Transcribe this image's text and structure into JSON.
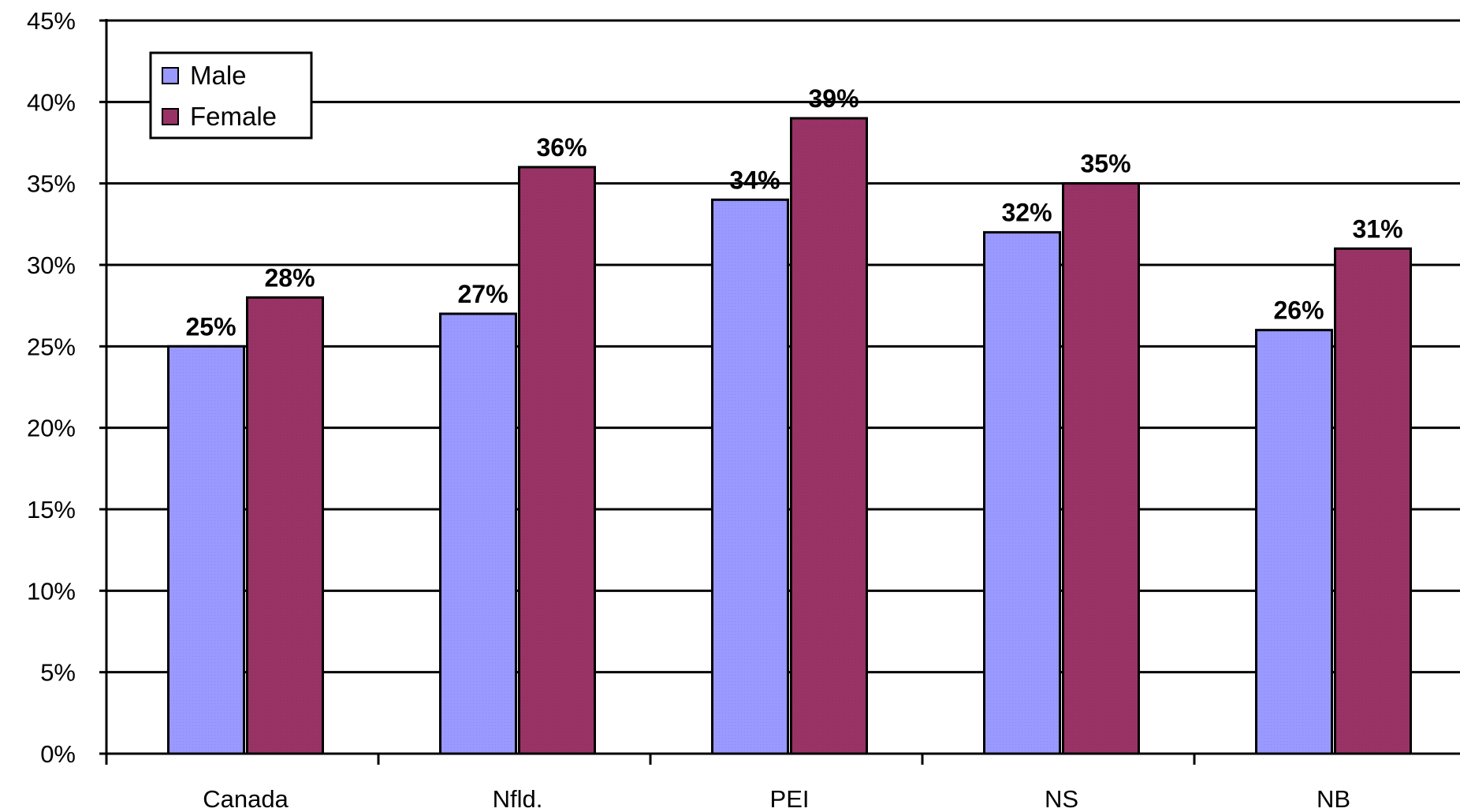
{
  "chart_data": {
    "type": "bar",
    "categories": [
      "Canada",
      "Nfld.",
      "PEI",
      "NS",
      "NB"
    ],
    "series": [
      {
        "name": "Male",
        "color": "#9999ff",
        "values": [
          25,
          27,
          34,
          32,
          26
        ],
        "labels": [
          "25%",
          "27%",
          "34%",
          "32%",
          "26%"
        ]
      },
      {
        "name": "Female",
        "color": "#993366",
        "values": [
          28,
          36,
          39,
          35,
          31
        ],
        "labels": [
          "28%",
          "36%",
          "39%",
          "35%",
          "31%"
        ]
      }
    ],
    "ylim": [
      0,
      45
    ],
    "yticks": [
      0,
      5,
      10,
      15,
      20,
      25,
      30,
      35,
      40,
      45
    ],
    "ytick_labels": [
      "0%",
      "5%",
      "10%",
      "15%",
      "20%",
      "25%",
      "30%",
      "35%",
      "40%",
      "45%"
    ],
    "grid": true,
    "legend_position": "top-left",
    "title": "",
    "xlabel": "",
    "ylabel": ""
  }
}
